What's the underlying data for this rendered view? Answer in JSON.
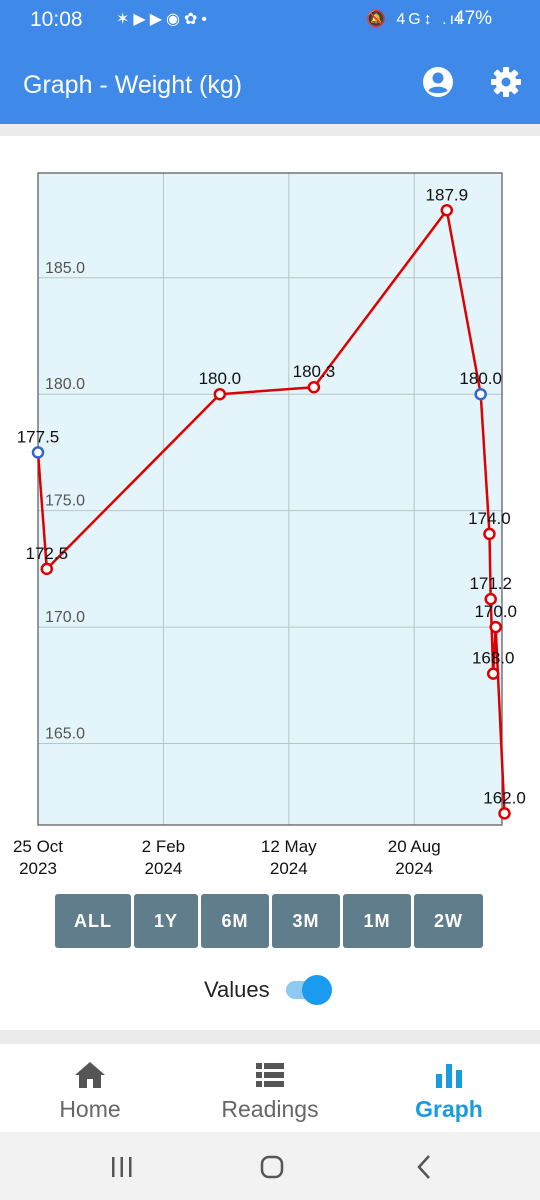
{
  "status": {
    "time": "10:08",
    "notif_icons": "✶▶▶◉✿•",
    "sys_icons": "🔕 4G↕ .ıl",
    "battery": "47%"
  },
  "appbar": {
    "title": "Graph - Weight (kg)",
    "account_icon": "account-circle-icon",
    "settings_icon": "gear-icon"
  },
  "chart_data": {
    "type": "line",
    "xlabel": "",
    "ylabel": "",
    "ylim": [
      161.5,
      189.5
    ],
    "yticks": [
      "165.0",
      "170.0",
      "175.0",
      "180.0",
      "185.0"
    ],
    "ytick_values": [
      165,
      170,
      175,
      180,
      185
    ],
    "xticks": [
      {
        "date": "2023-10-25",
        "l1": "25 Oct",
        "l2": "2023"
      },
      {
        "date": "2024-02-02",
        "l1": "2 Feb",
        "l2": "2024"
      },
      {
        "date": "2024-05-12",
        "l1": "12 May",
        "l2": "2024"
      },
      {
        "date": "2024-08-20",
        "l1": "20 Aug",
        "l2": "2024"
      }
    ],
    "xrange": [
      "2023-10-25",
      "2024-10-29"
    ],
    "background_color": "#e4f4fb",
    "line_color": "#dd0000",
    "highlight_color": "#3366cc",
    "points": [
      {
        "date": "2023-10-25",
        "value": 177.5,
        "label": "177.5",
        "highlight": true
      },
      {
        "date": "2023-11-01",
        "value": 172.5,
        "label": "172.5",
        "highlight": false
      },
      {
        "date": "2024-03-18",
        "value": 180.0,
        "label": "180.0",
        "highlight": false
      },
      {
        "date": "2024-06-01",
        "value": 180.3,
        "label": "180.3",
        "highlight": false
      },
      {
        "date": "2024-09-15",
        "value": 187.9,
        "label": "187.9",
        "highlight": false
      },
      {
        "date": "2024-10-12",
        "value": 180.0,
        "label": "180.0",
        "highlight": true
      },
      {
        "date": "2024-10-19",
        "value": 174.0,
        "label": "174.0",
        "highlight": false
      },
      {
        "date": "2024-10-20",
        "value": 171.2,
        "label": "171.2",
        "highlight": false
      },
      {
        "date": "2024-10-22",
        "value": 168.0,
        "label": "168.0",
        "highlight": false
      },
      {
        "date": "2024-10-24",
        "value": 170.0,
        "label": "170.0",
        "highlight": false
      },
      {
        "date": "2024-10-31",
        "value": 162.0,
        "label": "162.0",
        "highlight": false
      }
    ]
  },
  "ranges": [
    {
      "label": "ALL",
      "active": true
    },
    {
      "label": "1Y",
      "active": false
    },
    {
      "label": "6M",
      "active": false
    },
    {
      "label": "3M",
      "active": false
    },
    {
      "label": "1M",
      "active": false
    },
    {
      "label": "2W",
      "active": false
    }
  ],
  "values_toggle": {
    "label": "Values",
    "on": true
  },
  "nav": {
    "home": "Home",
    "readings": "Readings",
    "graph": "Graph"
  }
}
